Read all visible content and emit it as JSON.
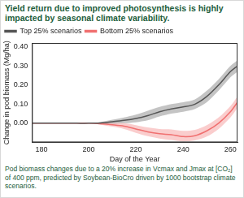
{
  "chart_data": {
    "type": "line",
    "title": "Yield return due to improved photosynthesis is highly impacted by seasonal climate variability.",
    "caption": "Pod biomass changes due to a 20% increase in Vcmax and Jmax at [CO₂] of 400 ppm, predicted by Soybean-BioCro driven by 1000 bootstrap climate scenarios.",
    "x_label": "Day of the Year",
    "y_label": "Change in pod biomass (Mg/ha)",
    "x": [
      176,
      180,
      185,
      190,
      195,
      200,
      205,
      210,
      215,
      220,
      225,
      230,
      235,
      240,
      245,
      250,
      255,
      260,
      263
    ],
    "series": [
      {
        "name": "Top 25% scenarios",
        "color": "#555555",
        "values": [
          0,
          0,
          0,
          0,
          0,
          0,
          0.002,
          0.008,
          0.015,
          0.025,
          0.04,
          0.06,
          0.075,
          0.085,
          0.1,
          0.14,
          0.2,
          0.27,
          0.3
        ],
        "lower": [
          0,
          0,
          0,
          0,
          0,
          0,
          -0.002,
          -0.002,
          0.0,
          0.005,
          0.015,
          0.035,
          0.05,
          0.06,
          0.075,
          0.11,
          0.17,
          0.24,
          0.27
        ],
        "upper": [
          0,
          0,
          0,
          0,
          0,
          0,
          0.006,
          0.018,
          0.03,
          0.045,
          0.065,
          0.085,
          0.1,
          0.11,
          0.125,
          0.17,
          0.23,
          0.3,
          0.33
        ]
      },
      {
        "name": "Bottom 25% scenarios",
        "color": "#f07070",
        "values": [
          0,
          0,
          0,
          0,
          0,
          0,
          -0.003,
          -0.008,
          -0.015,
          -0.03,
          -0.045,
          -0.055,
          -0.06,
          -0.07,
          -0.065,
          -0.04,
          0.0,
          0.06,
          0.11
        ],
        "lower": [
          0,
          0,
          0,
          0,
          0,
          0,
          -0.008,
          -0.018,
          -0.03,
          -0.05,
          -0.068,
          -0.08,
          -0.088,
          -0.095,
          -0.09,
          -0.07,
          -0.03,
          0.03,
          0.08
        ],
        "upper": [
          0,
          0,
          0,
          0,
          0,
          0,
          0.002,
          0.002,
          0.0,
          -0.01,
          -0.022,
          -0.03,
          -0.032,
          -0.04,
          -0.035,
          -0.01,
          0.03,
          0.09,
          0.14
        ]
      }
    ],
    "xlim": [
      176,
      263
    ],
    "xticks": [
      180,
      200,
      220,
      240,
      260
    ],
    "ylim": [
      -0.1,
      0.42
    ],
    "yticks": [
      {
        "value": 0,
        "label": "0.00"
      },
      {
        "value": 0.1,
        "label": "0.10"
      },
      {
        "value": 0.2,
        "label": "0.20"
      },
      {
        "value": 0.3,
        "label": "0.30"
      },
      {
        "value": 0.4,
        "label": "0.40"
      }
    ],
    "legend": "top-left",
    "grid": false
  }
}
